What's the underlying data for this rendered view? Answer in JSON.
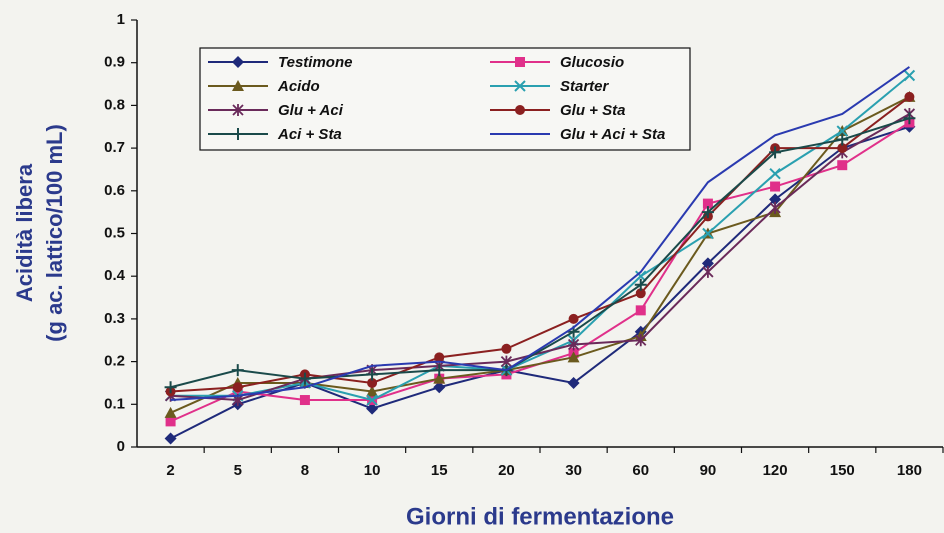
{
  "chart_data": {
    "type": "line",
    "xlabel": "Giorni di fermentazione",
    "ylabel": [
      "Acidità libera",
      "(g ac. lattico/100 mL)"
    ],
    "categories": [
      "2",
      "5",
      "8",
      "10",
      "15",
      "20",
      "30",
      "60",
      "90",
      "120",
      "150",
      "180"
    ],
    "ylim": [
      0,
      1
    ],
    "yticks": [
      0,
      0.1,
      0.2,
      0.3,
      0.4,
      0.5,
      0.6,
      0.7,
      0.8,
      0.9,
      1
    ],
    "grid": false,
    "legend": "top-left",
    "series": [
      {
        "name": "Testimone",
        "color": "#1f2a7a",
        "marker": "diamond",
        "values": [
          0.02,
          0.1,
          0.15,
          0.09,
          0.14,
          0.18,
          0.15,
          0.27,
          0.43,
          0.58,
          0.7,
          0.75
        ]
      },
      {
        "name": "Glucosio",
        "color": "#e0308a",
        "marker": "square",
        "values": [
          0.06,
          0.13,
          0.11,
          0.11,
          0.16,
          0.17,
          0.22,
          0.32,
          0.57,
          0.61,
          0.66,
          0.76
        ]
      },
      {
        "name": "Acido",
        "color": "#6b5a1e",
        "marker": "triangle",
        "values": [
          0.08,
          0.15,
          0.15,
          0.13,
          0.16,
          0.18,
          0.21,
          0.26,
          0.5,
          0.55,
          0.74,
          0.82
        ]
      },
      {
        "name": "Starter",
        "color": "#2aa0b0",
        "marker": "x",
        "values": [
          0.12,
          0.12,
          0.15,
          0.11,
          0.19,
          0.18,
          0.25,
          0.4,
          0.5,
          0.64,
          0.74,
          0.87
        ]
      },
      {
        "name": "Glu + Aci",
        "color": "#6a2a5a",
        "marker": "star",
        "values": [
          0.12,
          0.11,
          0.16,
          0.18,
          0.19,
          0.2,
          0.24,
          0.25,
          0.41,
          0.56,
          0.69,
          0.78
        ]
      },
      {
        "name": "Glu + Sta",
        "color": "#8b2020",
        "marker": "circle",
        "values": [
          0.13,
          0.14,
          0.17,
          0.15,
          0.21,
          0.23,
          0.3,
          0.36,
          0.54,
          0.7,
          0.7,
          0.82
        ]
      },
      {
        "name": "Aci  + Sta",
        "color": "#1a4a4a",
        "marker": "plus",
        "values": [
          0.14,
          0.18,
          0.16,
          0.17,
          0.18,
          0.18,
          0.27,
          0.38,
          0.55,
          0.69,
          0.72,
          0.77
        ]
      },
      {
        "name": "Glu + Aci + Sta",
        "color": "#2a3ab0",
        "marker": "none",
        "values": [
          0.11,
          0.12,
          0.14,
          0.19,
          0.2,
          0.18,
          0.28,
          0.41,
          0.62,
          0.73,
          0.78,
          0.89
        ]
      }
    ]
  }
}
